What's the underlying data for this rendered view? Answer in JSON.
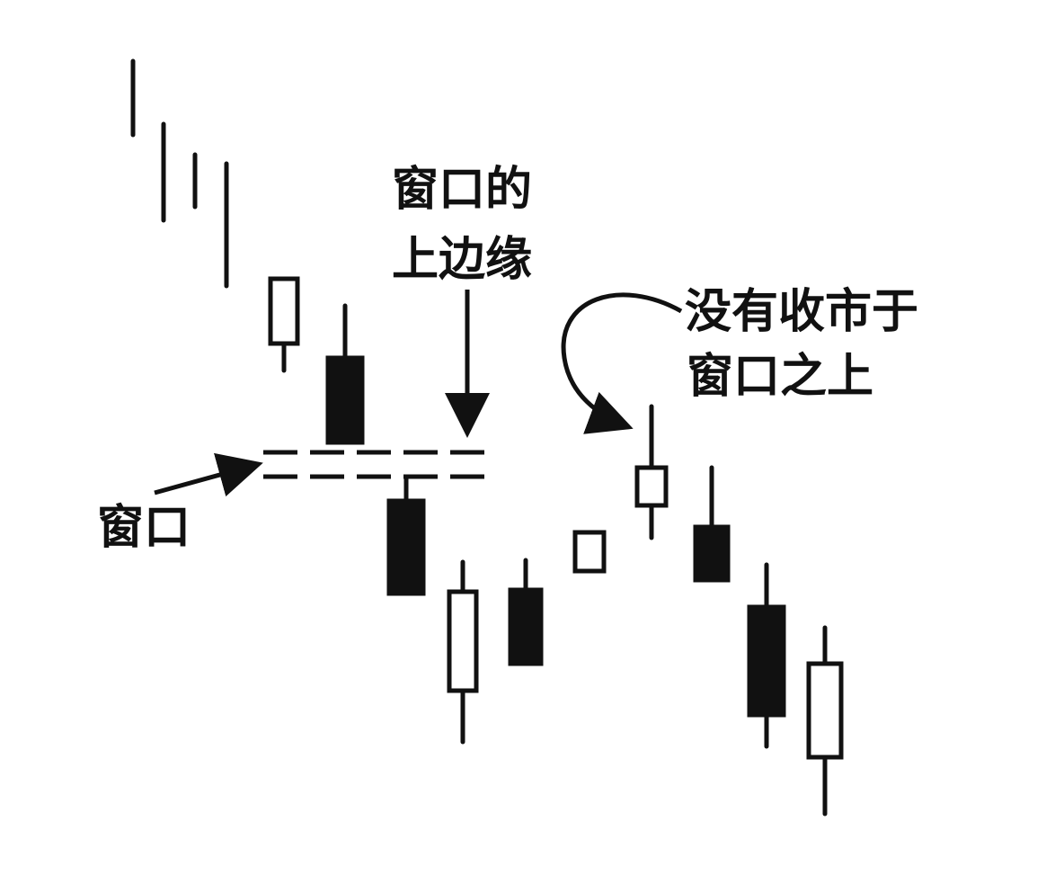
{
  "labels": {
    "window": "窗口",
    "upper_edge_line1": "窗口的",
    "upper_edge_line2": "上边缘",
    "no_close_line1": "没有收市于",
    "no_close_line2": "窗口之上"
  },
  "colors": {
    "ink": "#111111",
    "background": "#ffffff",
    "hollow_fill": "#ffffff"
  },
  "candles": [
    {
      "type": "line"
    },
    {
      "type": "line"
    },
    {
      "type": "line"
    },
    {
      "type": "line"
    },
    {
      "type": "hollow"
    },
    {
      "type": "filled"
    },
    {
      "type": "filled"
    },
    {
      "type": "hollow"
    },
    {
      "type": "filled"
    },
    {
      "type": "hollow"
    },
    {
      "type": "hollow"
    },
    {
      "type": "filled"
    },
    {
      "type": "filled"
    },
    {
      "type": "hollow"
    }
  ]
}
